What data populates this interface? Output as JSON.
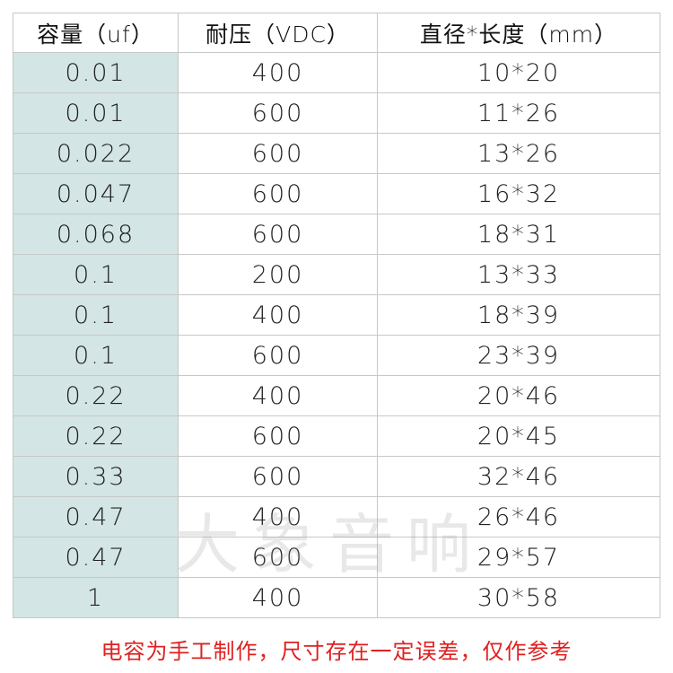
{
  "table": {
    "header": [
      "容量（uf）",
      "耐压（VDC）",
      "直径*长度（mm）"
    ],
    "rows": [
      [
        "0.01",
        "400",
        "10*20"
      ],
      [
        "0.01",
        "600",
        "11*26"
      ],
      [
        "0.022",
        "600",
        "13*26"
      ],
      [
        "0.047",
        "600",
        "16*32"
      ],
      [
        "0.068",
        "600",
        "18*31"
      ],
      [
        "0.1",
        "200",
        "13*33"
      ],
      [
        "0.1",
        "400",
        "18*39"
      ],
      [
        "0.1",
        "600",
        "23*39"
      ],
      [
        "0.22",
        "400",
        "20*46"
      ],
      [
        "0.22",
        "600",
        "20*45"
      ],
      [
        "0.33",
        "600",
        "32*46"
      ],
      [
        "0.47",
        "400",
        "26*46"
      ],
      [
        "0.47",
        "600",
        "29*57"
      ],
      [
        "1",
        "400",
        "30*58"
      ]
    ]
  },
  "watermark": "大象音响",
  "footer": "电容为手工制作，尺寸存在一定误差，仅作参考"
}
